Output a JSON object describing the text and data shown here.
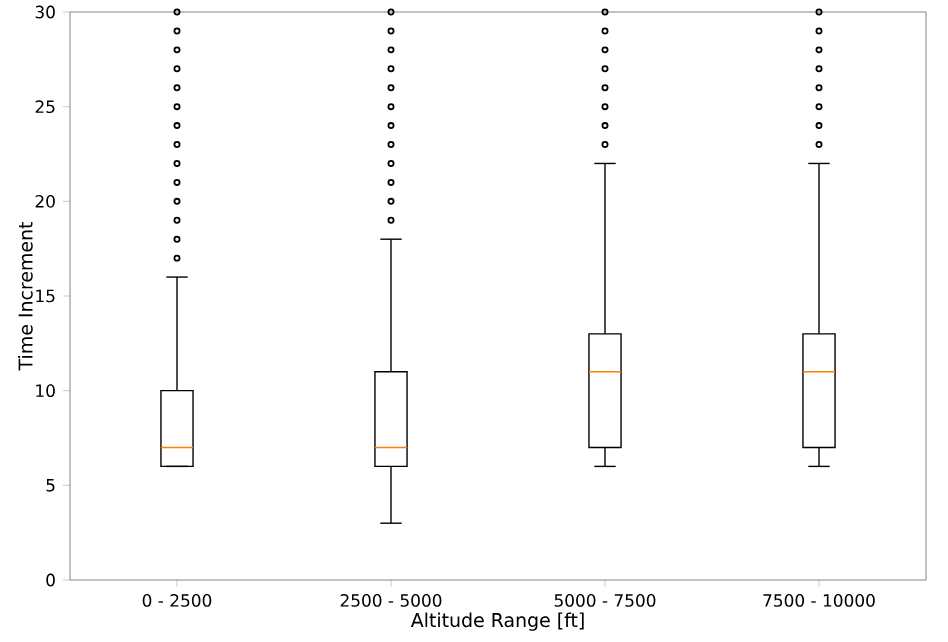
{
  "chart_data": {
    "type": "box",
    "xlabel": "Altitude Range [ft]",
    "ylabel": "Time Increment",
    "categories": [
      "0 - 2500",
      "2500 - 5000",
      "5000 - 7500",
      "7500 - 10000"
    ],
    "boxes": [
      {
        "low": 6,
        "q1": 6,
        "median": 7,
        "q3": 10,
        "high": 16,
        "outliers": [
          17,
          18,
          19,
          20,
          21,
          22,
          23,
          24,
          25,
          26,
          27,
          28,
          29,
          30
        ]
      },
      {
        "low": 3,
        "q1": 6,
        "median": 7,
        "q3": 11,
        "high": 18,
        "outliers": [
          19,
          20,
          21,
          22,
          23,
          24,
          25,
          26,
          27,
          28,
          29,
          30
        ]
      },
      {
        "low": 6,
        "q1": 7,
        "median": 11,
        "q3": 13,
        "high": 22,
        "outliers": [
          23,
          24,
          25,
          26,
          27,
          28,
          29,
          30
        ]
      },
      {
        "low": 6,
        "q1": 7,
        "median": 11,
        "q3": 13,
        "high": 22,
        "outliers": [
          23,
          24,
          25,
          26,
          27,
          28,
          29,
          30
        ]
      }
    ],
    "color": "#000000",
    "ylim": [
      0,
      30
    ],
    "yticks": [
      0,
      5,
      10,
      15,
      20,
      25,
      30
    ],
    "grid": false,
    "marker": "circle"
  }
}
